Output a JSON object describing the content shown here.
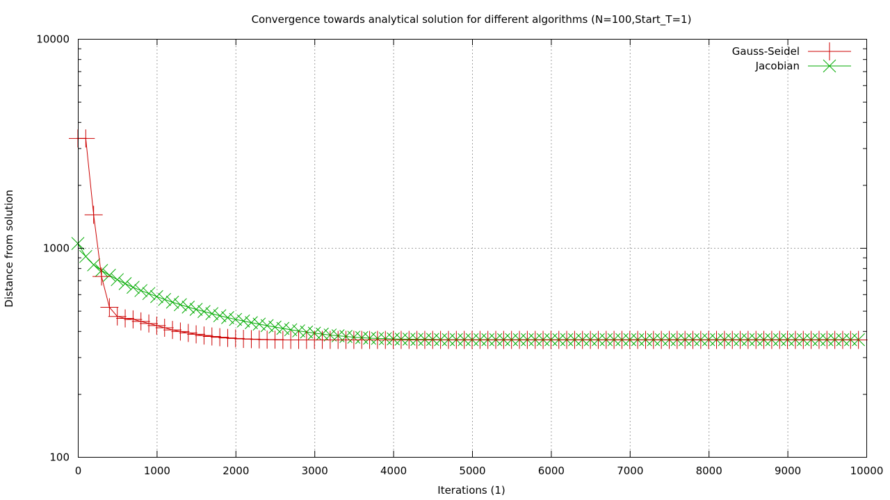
{
  "chart_data": {
    "type": "line",
    "title": "Convergence towards analytical solution for different algorithms (N=100,Start_T=1)",
    "xlabel": "Iterations (1)",
    "ylabel": "Distance from solution",
    "xlim": [
      0,
      10000
    ],
    "ylim": [
      100,
      10000
    ],
    "yscale": "log",
    "grid": true,
    "legend_position": "top-right",
    "x_ticks": [
      "0",
      "1000",
      "2000",
      "3000",
      "4000",
      "5000",
      "6000",
      "7000",
      "8000",
      "9000",
      "10000"
    ],
    "y_ticks": [
      "100",
      "1000",
      "10000"
    ],
    "series": [
      {
        "name": "Gauss-Seidel",
        "color": "#cc0000",
        "marker": "plus",
        "x": [
          0,
          100,
          200,
          300,
          400,
          500,
          600,
          700,
          800,
          900,
          1000,
          1100,
          1200,
          1300,
          1400,
          1500,
          1600,
          1700,
          1800,
          1900,
          2000,
          2100,
          2200,
          2300,
          2400,
          2500,
          2600,
          2700,
          2800,
          2900,
          3000,
          3100,
          3200,
          3300,
          3400,
          3500,
          3600,
          3700,
          3800,
          3900,
          4000,
          4100,
          4200,
          4300,
          4400,
          4500,
          4600,
          4700,
          4800,
          4900,
          5000,
          5100,
          5200,
          5300,
          5400,
          5500,
          5600,
          5700,
          5800,
          5900,
          6000,
          6100,
          6200,
          6300,
          6400,
          6500,
          6600,
          6700,
          6800,
          6900,
          7000,
          7100,
          7200,
          7300,
          7400,
          7500,
          7600,
          7700,
          7800,
          7900,
          8000,
          8100,
          8200,
          8300,
          8400,
          8500,
          8600,
          8700,
          8800,
          8900,
          9000,
          9100,
          9200,
          9300,
          9400,
          9500,
          9600,
          9700,
          9800,
          9900
        ],
        "y": [
          3340,
          3340,
          1440,
          730,
          520,
          470,
          460,
          455,
          445,
          435,
          425,
          415,
          405,
          398,
          392,
          386,
          381,
          377,
          374,
          371,
          369,
          367,
          366,
          365,
          364,
          364,
          363,
          363,
          363,
          363,
          363,
          363,
          363,
          363,
          363,
          363,
          363,
          363,
          363,
          363,
          363,
          363,
          363,
          363,
          363,
          363,
          363,
          363,
          363,
          363,
          363,
          363,
          363,
          363,
          363,
          363,
          363,
          363,
          363,
          363,
          363,
          363,
          363,
          363,
          363,
          363,
          363,
          363,
          363,
          363,
          363,
          363,
          363,
          363,
          363,
          363,
          363,
          363,
          363,
          363,
          363,
          363,
          363,
          363,
          363,
          363,
          363,
          363,
          363,
          363,
          363,
          363,
          363,
          363,
          363,
          363,
          363,
          363,
          363,
          363
        ]
      },
      {
        "name": "Jacobian",
        "color": "#00aa00",
        "marker": "cross",
        "x": [
          0,
          100,
          200,
          300,
          400,
          500,
          600,
          700,
          800,
          900,
          1000,
          1100,
          1200,
          1300,
          1400,
          1500,
          1600,
          1700,
          1800,
          1900,
          2000,
          2100,
          2200,
          2300,
          2400,
          2500,
          2600,
          2700,
          2800,
          2900,
          3000,
          3100,
          3200,
          3300,
          3400,
          3500,
          3600,
          3700,
          3800,
          3900,
          4000,
          4100,
          4200,
          4300,
          4400,
          4500,
          4600,
          4700,
          4800,
          4900,
          5000,
          5100,
          5200,
          5300,
          5400,
          5500,
          5600,
          5700,
          5800,
          5900,
          6000,
          6100,
          6200,
          6300,
          6400,
          6500,
          6600,
          6700,
          6800,
          6900,
          7000,
          7100,
          7200,
          7300,
          7400,
          7500,
          7600,
          7700,
          7800,
          7900,
          8000,
          8100,
          8200,
          8300,
          8400,
          8500,
          8600,
          8700,
          8800,
          8900,
          9000,
          9100,
          9200,
          9300,
          9400,
          9500,
          9600,
          9700,
          9800,
          9900
        ],
        "y": [
          1050,
          910,
          830,
          780,
          740,
          705,
          675,
          648,
          625,
          605,
          585,
          567,
          550,
          535,
          521,
          508,
          496,
          485,
          474,
          464,
          455,
          447,
          439,
          432,
          425,
          418,
          412,
          406,
          401,
          396,
          391,
          387,
          383,
          380,
          377,
          374,
          372,
          370,
          369,
          368,
          367,
          366,
          366,
          365,
          365,
          365,
          364,
          364,
          364,
          364,
          364,
          364,
          364,
          364,
          364,
          364,
          364,
          364,
          364,
          364,
          364,
          364,
          364,
          364,
          364,
          364,
          364,
          364,
          364,
          364,
          364,
          364,
          364,
          364,
          364,
          364,
          364,
          364,
          364,
          364,
          364,
          364,
          364,
          364,
          364,
          364,
          364,
          364,
          364,
          364,
          364,
          364,
          364,
          364,
          364,
          364,
          364,
          364,
          364,
          364
        ]
      }
    ]
  }
}
